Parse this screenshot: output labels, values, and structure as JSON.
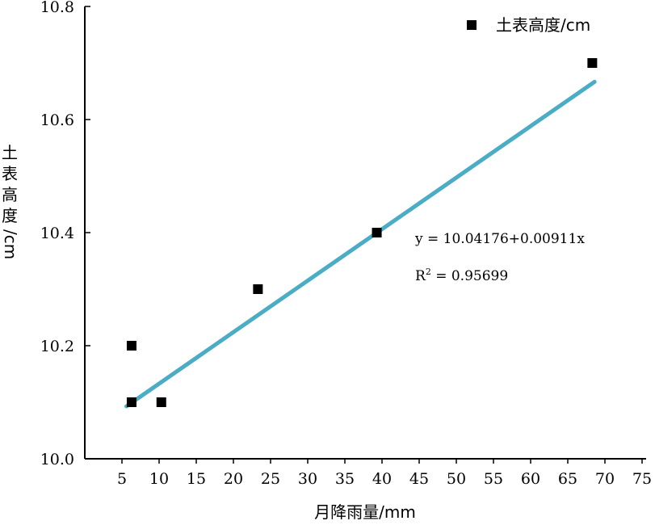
{
  "chart_data": {
    "type": "scatter",
    "xlabel": "月降雨量/mm",
    "ylabel": "土表高度/cm",
    "xlim": [
      0,
      75
    ],
    "ylim": [
      10.0,
      10.8
    ],
    "xticks": [
      5,
      10,
      15,
      20,
      25,
      30,
      35,
      40,
      45,
      50,
      55,
      60,
      65,
      70,
      75
    ],
    "xtick_labels": [
      "5",
      "10",
      "15",
      "20",
      "25",
      "30",
      "35",
      "40",
      "45",
      "50",
      "55",
      "60",
      "65",
      "70",
      "75"
    ],
    "yticks": [
      10.0,
      10.2,
      10.4,
      10.6,
      10.8
    ],
    "ytick_labels": [
      "10.0",
      "10.2",
      "10.4",
      "10.6",
      "10.8"
    ],
    "legend": {
      "position": "top-right",
      "label": "土表高度/cm"
    },
    "grid": false,
    "series": [
      {
        "name": "土表高度/cm",
        "points": [
          {
            "x": 6.3,
            "y": 10.2
          },
          {
            "x": 6.3,
            "y": 10.1
          },
          {
            "x": 10.3,
            "y": 10.1
          },
          {
            "x": 23.3,
            "y": 10.3
          },
          {
            "x": 39.3,
            "y": 10.4
          },
          {
            "x": 68.3,
            "y": 10.7
          }
        ],
        "color": "#000000"
      }
    ],
    "fit_line": {
      "intercept": 10.04176,
      "slope": 0.00911,
      "x_range": [
        5.6,
        68.6
      ],
      "color": "#4bacc6"
    },
    "annotations": {
      "equation": "y = 10.04176+0.00911x",
      "r2_base": "R",
      "r2_sup": "2",
      "r2_value": " = 0.95699"
    }
  }
}
